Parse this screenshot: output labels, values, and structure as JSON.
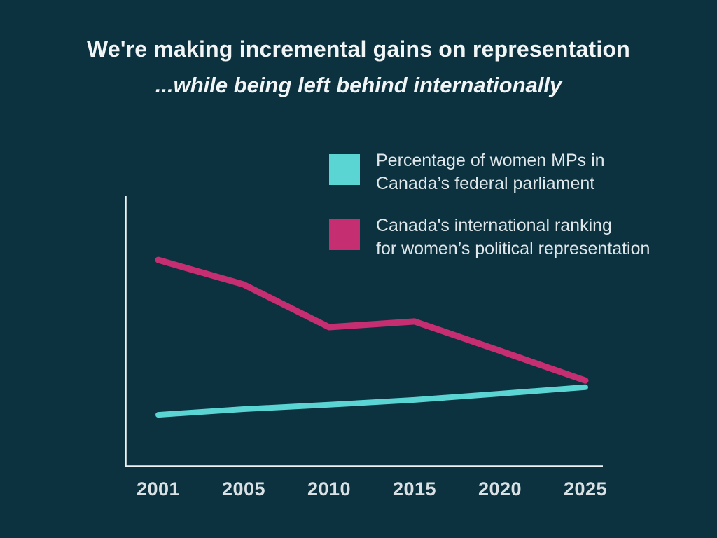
{
  "background_color": "#0c313f",
  "title": {
    "line1": "We're making incremental gains on representation",
    "line2": "...while being left behind internationally"
  },
  "legend": {
    "items": [
      {
        "color": "#5ad5d3",
        "label_line1": "Percentage of women MPs in",
        "label_line2": "Canada’s federal parliament"
      },
      {
        "color": "#c52e70",
        "label_line1": "Canada's international ranking",
        "label_line2": "for women’s political representation"
      }
    ]
  },
  "chart_data": {
    "type": "line",
    "title": "We're making incremental gains on representation ...while being left behind internationally",
    "categories": [
      "2001",
      "2005",
      "2010",
      "2015",
      "2020",
      "2025"
    ],
    "series": [
      {
        "name": "Percentage of women MPs in Canada’s federal parliament",
        "color": "#5ad5d3",
        "values": [
          19.2,
          21.3,
          22.9,
          24.7,
          27.0,
          29.4
        ]
      },
      {
        "name": "Canada's international ranking for women’s political representation",
        "color": "#c52e70",
        "values": [
          76.6,
          67.5,
          51.7,
          53.8,
          42.9,
          31.9
        ]
      }
    ],
    "xlabel": "",
    "ylabel": "",
    "ylim": [
      0,
      100
    ],
    "y_axis_labeled": false,
    "grid": false,
    "legend_position": "top-right",
    "axis_color": "#edf2f3",
    "tick_label_color": "#d9e1e4"
  }
}
